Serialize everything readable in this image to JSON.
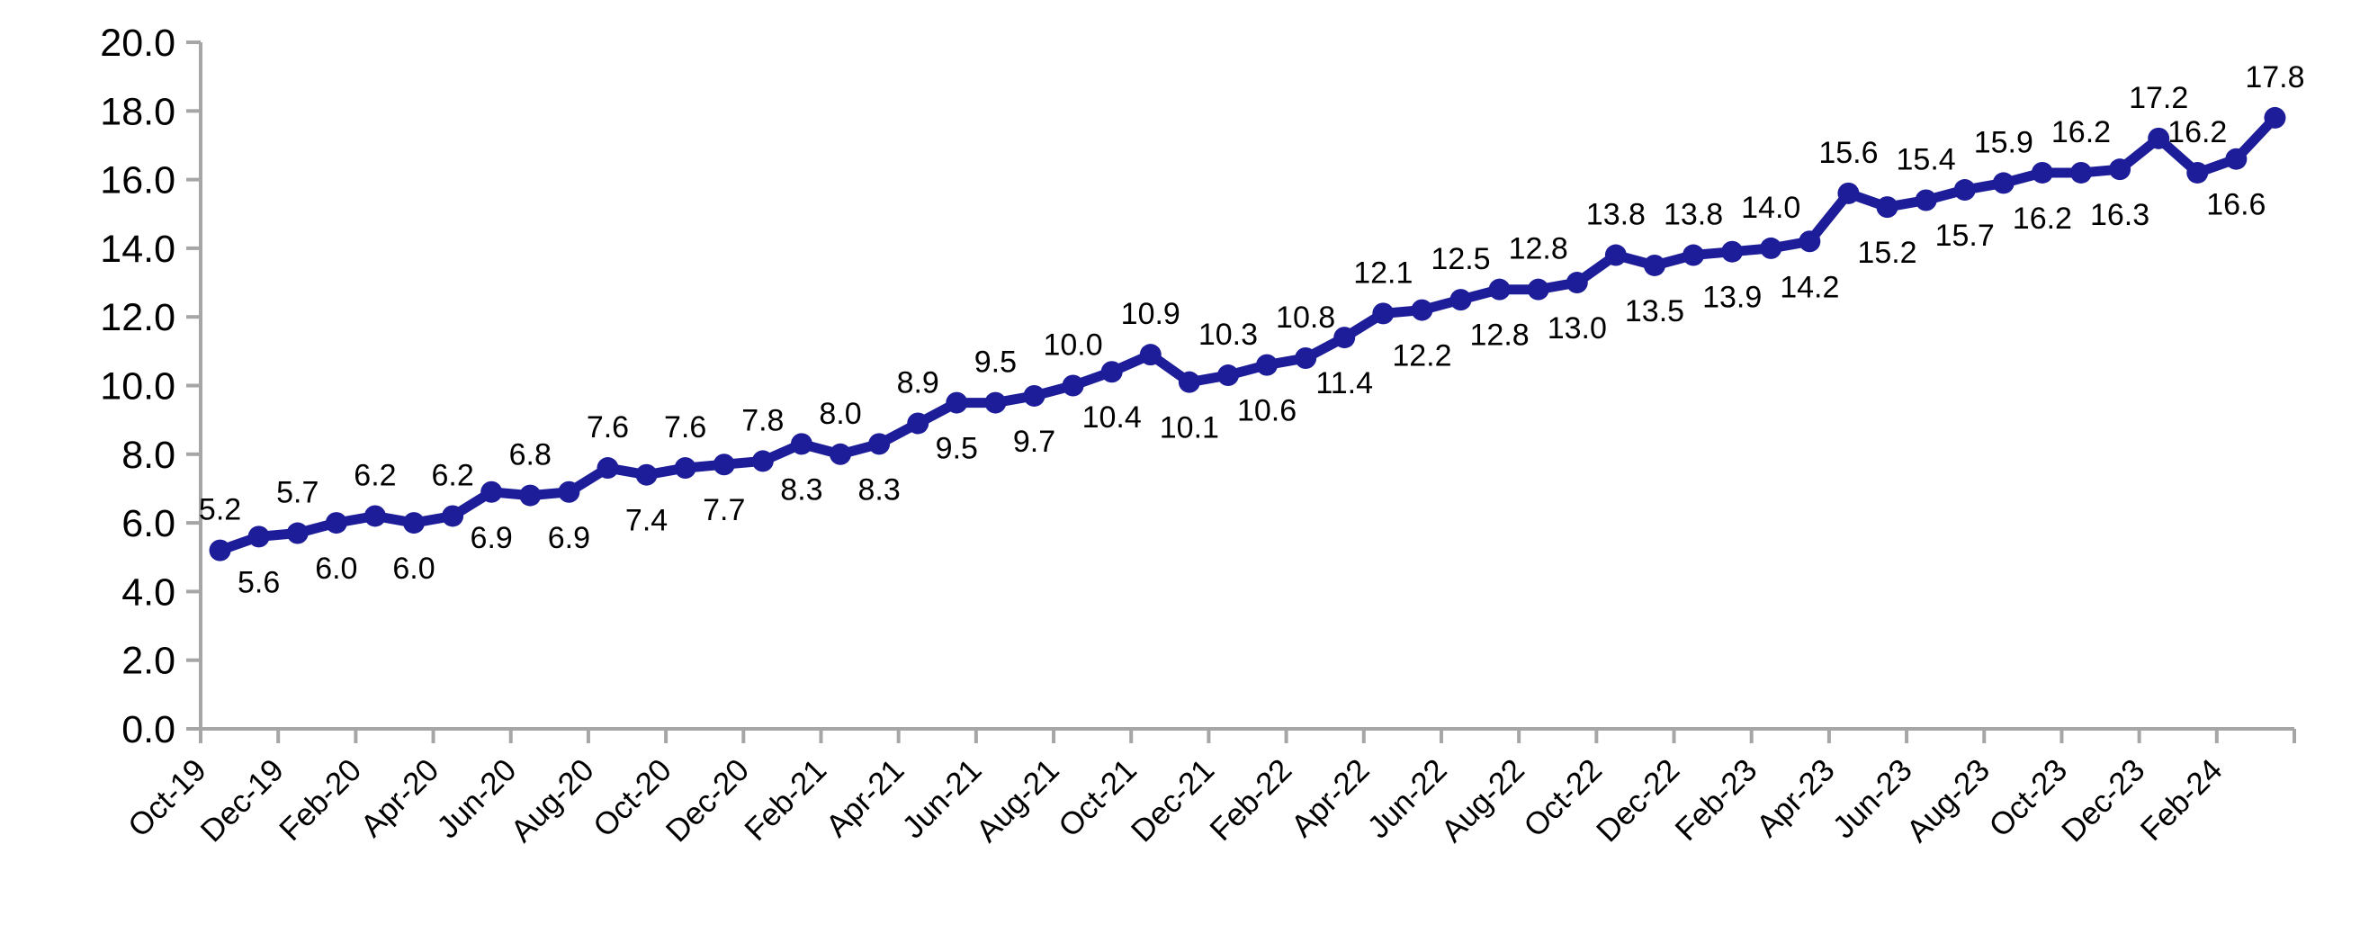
{
  "chart_data": {
    "type": "line",
    "title": "",
    "legend": "none",
    "grid": false,
    "markers": true,
    "categories": [
      "Oct-19",
      "Nov-19",
      "Dec-19",
      "Jan-20",
      "Feb-20",
      "Mar-20",
      "Apr-20",
      "May-20",
      "Jun-20",
      "Jul-20",
      "Aug-20",
      "Sep-20",
      "Oct-20",
      "Nov-20",
      "Dec-20",
      "Jan-21",
      "Feb-21",
      "Mar-21",
      "Apr-21",
      "May-21",
      "Jun-21",
      "Jul-21",
      "Aug-21",
      "Sep-21",
      "Oct-21",
      "Nov-21",
      "Dec-21",
      "Jan-22",
      "Feb-22",
      "Mar-22",
      "Apr-22",
      "May-22",
      "Jun-22",
      "Jul-22",
      "Aug-22",
      "Sep-22",
      "Oct-22",
      "Nov-22",
      "Dec-22",
      "Jan-23",
      "Feb-23",
      "Mar-23",
      "Apr-23",
      "May-23",
      "Jun-23",
      "Jul-23",
      "Aug-23",
      "Sep-23",
      "Oct-23",
      "Nov-23",
      "Dec-23",
      "Jan-24",
      "Feb-24",
      "Mar-24"
    ],
    "values": [
      5.2,
      5.6,
      5.7,
      6.0,
      6.2,
      6.0,
      6.2,
      6.9,
      6.8,
      6.9,
      7.6,
      7.4,
      7.6,
      7.7,
      7.8,
      8.3,
      8.0,
      8.3,
      8.9,
      9.5,
      9.5,
      9.7,
      10.0,
      10.4,
      10.9,
      10.1,
      10.3,
      10.6,
      10.8,
      11.4,
      12.1,
      12.2,
      12.5,
      12.8,
      12.8,
      13.0,
      13.8,
      13.5,
      13.8,
      13.9,
      14.0,
      14.2,
      15.6,
      15.2,
      15.4,
      15.7,
      15.9,
      16.2,
      16.2,
      16.3,
      17.2,
      16.2,
      16.6,
      17.8
    ],
    "data_labels": {
      "show": true,
      "decimals": 1,
      "sides": [
        "above",
        "below",
        "above",
        "below",
        "above",
        "below",
        "above",
        "below",
        "above",
        "below",
        "above",
        "below",
        "above",
        "below",
        "above",
        "below",
        "above",
        "below",
        "above",
        "below",
        "above",
        "below",
        "above",
        "below",
        "above",
        "below",
        "above",
        "below",
        "above",
        "below",
        "above",
        "below",
        "above",
        "below",
        "above",
        "below",
        "above",
        "below",
        "above",
        "below",
        "above",
        "below",
        "above",
        "below",
        "above",
        "below",
        "above",
        "below",
        "above",
        "below",
        "above",
        "above",
        "below",
        "above"
      ]
    },
    "x_axis": {
      "tick_labels": [
        "Oct-19",
        "Dec-19",
        "Feb-20",
        "Apr-20",
        "Jun-20",
        "Aug-20",
        "Oct-20",
        "Dec-20",
        "Feb-21",
        "Apr-21",
        "Jun-21",
        "Aug-21",
        "Oct-21",
        "Dec-21",
        "Feb-22",
        "Apr-22",
        "Jun-22",
        "Aug-22",
        "Oct-22",
        "Dec-22",
        "Feb-23",
        "Apr-23",
        "Jun-23",
        "Aug-23",
        "Oct-23",
        "Dec-23",
        "Feb-24"
      ],
      "label_interval": 2,
      "label_rotation_deg": 45
    },
    "y_axis": {
      "min": 0,
      "max": 20,
      "step": 2,
      "tick_labels": [
        "0.0",
        "2.0",
        "4.0",
        "6.0",
        "8.0",
        "10.0",
        "12.0",
        "14.0",
        "16.0",
        "18.0",
        "20.0"
      ]
    },
    "ylim": [
      0,
      20
    ],
    "colors": {
      "line": "#1d1d9a",
      "marker": "#1d1d9a",
      "axis": "#a6a6a6",
      "text": "#000000",
      "background": "#ffffff"
    }
  }
}
